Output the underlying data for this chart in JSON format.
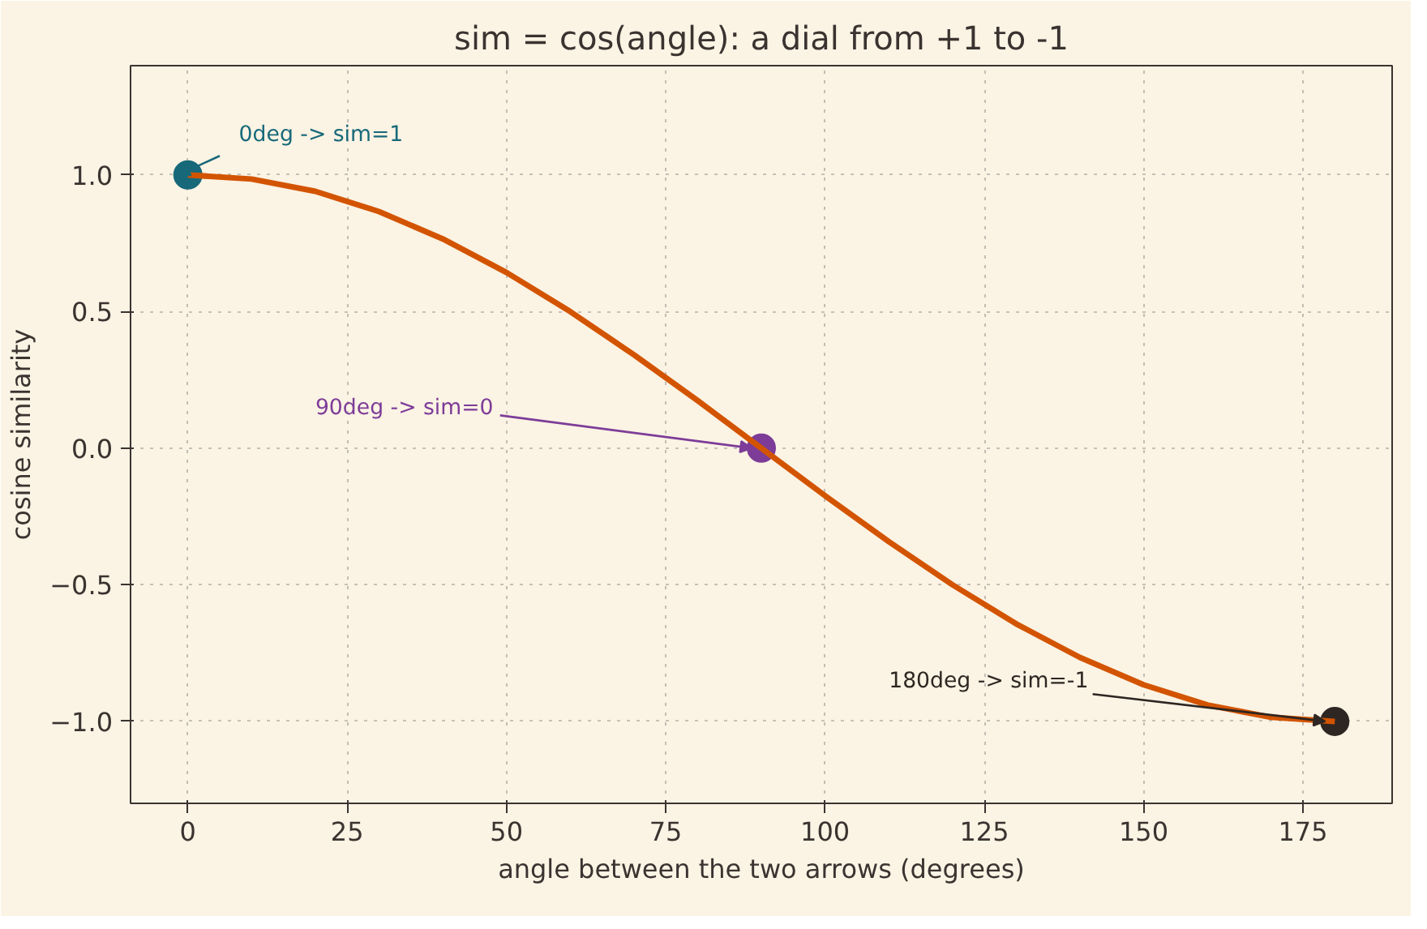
{
  "chart_data": {
    "type": "line",
    "title": "sim = cos(angle): a dial from +1 to -1",
    "xlabel": "angle between the two arrows (degrees)",
    "ylabel": "cosine similarity",
    "x": [
      0,
      10,
      20,
      30,
      40,
      50,
      60,
      70,
      80,
      90,
      100,
      110,
      120,
      130,
      140,
      150,
      160,
      170,
      180
    ],
    "xlim": [
      -9,
      189
    ],
    "xticks": [
      0,
      25,
      50,
      75,
      100,
      125,
      150,
      175
    ],
    "ylim": [
      -1.3,
      1.4
    ],
    "yticks": [
      {
        "value": -1,
        "label": "−1.0"
      },
      {
        "value": -0.5,
        "label": "−0.5"
      },
      {
        "value": 0,
        "label": "0.0"
      },
      {
        "value": 0.5,
        "label": "0.5"
      },
      {
        "value": 1,
        "label": "1.0"
      }
    ],
    "grid": true,
    "line_style": "solid",
    "series": [
      {
        "color": "#d35400",
        "values": [
          1,
          0.985,
          0.94,
          0.866,
          0.766,
          0.643,
          0.5,
          0.342,
          0.174,
          0,
          -0.174,
          -0.342,
          -0.5,
          -0.643,
          -0.766,
          -0.866,
          -0.94,
          -0.985,
          -1
        ]
      },
      {
        "type": "scatter",
        "x": [
          0
        ],
        "values": [
          1
        ],
        "color": "#17697a"
      },
      {
        "type": "scatter",
        "x": [
          90
        ],
        "values": [
          0
        ],
        "color": "#7d3c98"
      },
      {
        "type": "scatter",
        "x": [
          180
        ],
        "values": [
          -1
        ],
        "color": "#2e2622"
      }
    ],
    "annotations": [
      {
        "text": "0deg -> sim=1",
        "x": 0,
        "y": 1
      },
      {
        "text": "90deg -> sim=0",
        "x": 90,
        "y": 0
      },
      {
        "text": "180deg -> sim=-1",
        "x": 180,
        "y": -1
      }
    ]
  }
}
